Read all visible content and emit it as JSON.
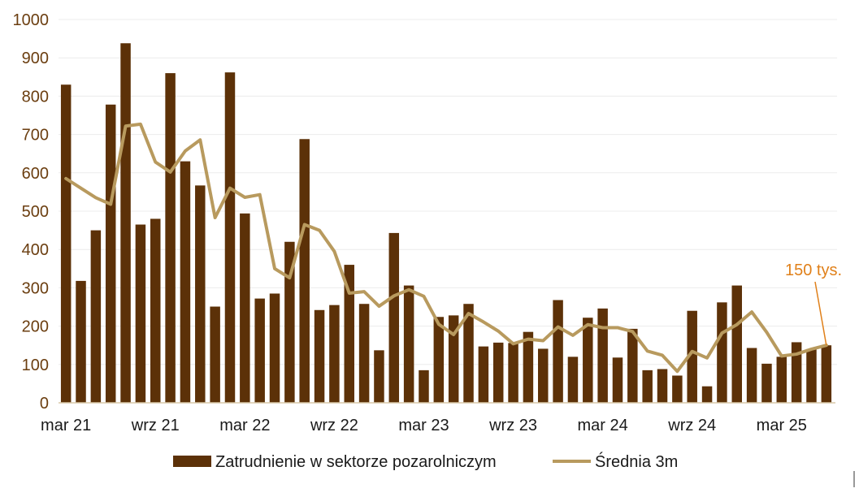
{
  "colors": {
    "bar": "#5c3108",
    "line": "#b89a5e",
    "callout": "#e0801a",
    "axis": "#6b3e10",
    "grid": "#ececec"
  },
  "chart_data": {
    "type": "bar",
    "title": "",
    "xlabel": "",
    "ylabel": "",
    "ylim": [
      0,
      1000
    ],
    "yticks": [
      "0",
      "100",
      "200",
      "300",
      "400",
      "500",
      "600",
      "700",
      "800",
      "900",
      "1000"
    ],
    "x_tick_labels": [
      {
        "index": 0,
        "label": "mar 21"
      },
      {
        "index": 6,
        "label": "wrz 21"
      },
      {
        "index": 12,
        "label": "mar 22"
      },
      {
        "index": 18,
        "label": "wrz 22"
      },
      {
        "index": 24,
        "label": "mar 23"
      },
      {
        "index": 30,
        "label": "wrz 23"
      },
      {
        "index": 36,
        "label": "mar 24"
      },
      {
        "index": 42,
        "label": "wrz 24"
      },
      {
        "index": 48,
        "label": "mar 25"
      }
    ],
    "series": [
      {
        "name": "Zatrudnienie w sektorze pozarolniczym",
        "type": "bar",
        "values": [
          830,
          318,
          450,
          778,
          938,
          465,
          480,
          860,
          630,
          567,
          251,
          862,
          494,
          272,
          285,
          420,
          688,
          242,
          255,
          360,
          258,
          137,
          443,
          306,
          85,
          224,
          228,
          258,
          147,
          157,
          156,
          185,
          141,
          268,
          120,
          222,
          246,
          118,
          193,
          85,
          88,
          71,
          240,
          43,
          262,
          306,
          143,
          102,
          120,
          158,
          140,
          150
        ]
      },
      {
        "name": "Średnia 3m",
        "type": "line",
        "values": [
          585,
          560,
          535,
          518,
          722,
          727,
          628,
          602,
          657,
          686,
          483,
          560,
          536,
          543,
          350,
          326,
          465,
          450,
          395,
          286,
          290,
          252,
          279,
          295,
          278,
          205,
          178,
          233,
          211,
          187,
          154,
          166,
          162,
          198,
          176,
          204,
          196,
          196,
          186,
          135,
          124,
          82,
          134,
          117,
          182,
          204,
          237,
          184,
          122,
          127,
          140,
          150
        ]
      }
    ],
    "annotation": {
      "text": "150 tys.",
      "index": 51
    },
    "legend": {
      "position": "bottom",
      "bar_label": "Zatrudnienie w sektorze pozarolniczym",
      "line_label": "Średnia 3m"
    },
    "grid": true
  }
}
